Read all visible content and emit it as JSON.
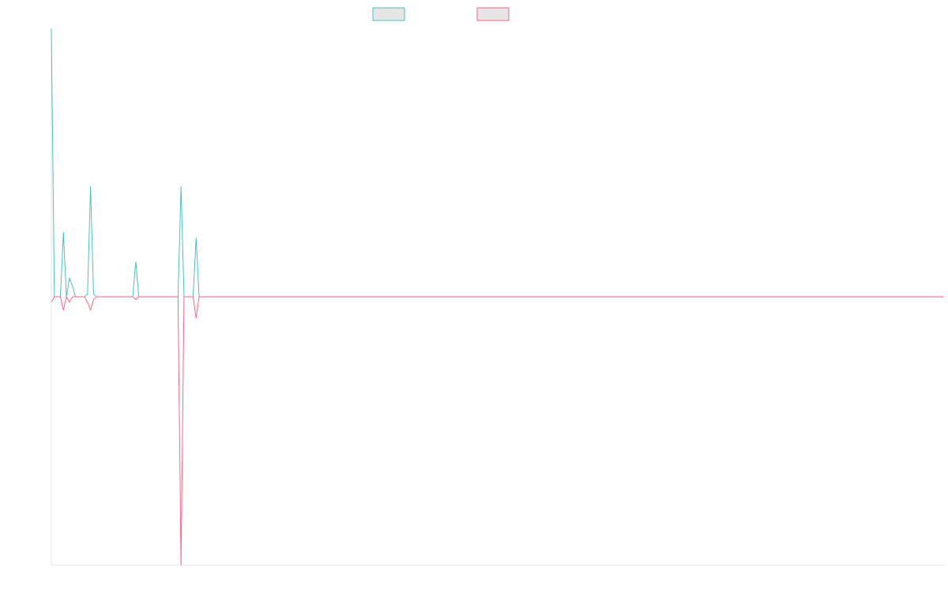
{
  "chart_data": {
    "type": "line",
    "title": "",
    "xlabel": "",
    "ylabel": "",
    "grid": false,
    "legend_position": "top-center",
    "x_count": 297,
    "ylim": [
      -1,
      1
    ],
    "baseline": 0,
    "series": [
      {
        "name": "",
        "color": "#4bc0c0",
        "legend_fill": "#e6e6e6",
        "spikes": [
          {
            "x": 0,
            "y": 1.0
          },
          {
            "x": 4,
            "y": 0.24
          },
          {
            "x": 6,
            "y": 0.07
          },
          {
            "x": 7,
            "y": 0.04
          },
          {
            "x": 12,
            "y": 0.01
          },
          {
            "x": 13,
            "y": 0.41
          },
          {
            "x": 14,
            "y": 0.01
          },
          {
            "x": 28,
            "y": 0.13
          },
          {
            "x": 43,
            "y": 0.41
          },
          {
            "x": 48,
            "y": 0.22
          }
        ]
      },
      {
        "name": "",
        "color": "#ff6384",
        "legend_fill": "#e6e6e6",
        "spikes": [
          {
            "x": 0,
            "y": -0.02
          },
          {
            "x": 4,
            "y": -0.05
          },
          {
            "x": 6,
            "y": -0.02
          },
          {
            "x": 12,
            "y": -0.02
          },
          {
            "x": 13,
            "y": -0.05
          },
          {
            "x": 14,
            "y": -0.01
          },
          {
            "x": 28,
            "y": -0.01
          },
          {
            "x": 43,
            "y": -1.0
          },
          {
            "x": 48,
            "y": -0.08
          }
        ]
      }
    ]
  }
}
